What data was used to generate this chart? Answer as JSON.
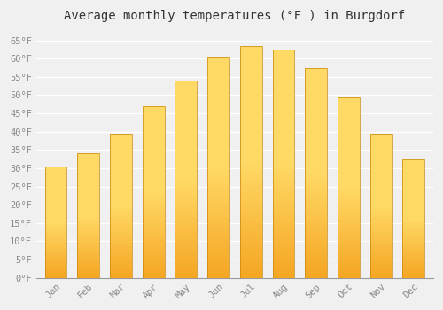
{
  "title": "Average monthly temperatures (°F ) in Burgdorf",
  "months": [
    "Jan",
    "Feb",
    "Mar",
    "Apr",
    "May",
    "Jun",
    "Jul",
    "Aug",
    "Sep",
    "Oct",
    "Nov",
    "Dec"
  ],
  "values": [
    30.5,
    34.0,
    39.5,
    47.0,
    54.0,
    60.5,
    63.5,
    62.5,
    57.5,
    49.5,
    39.5,
    32.5
  ],
  "bar_color_light": "#FFD966",
  "bar_color_dark": "#F5A623",
  "bar_edge_color": "#C8860A",
  "ylim": [
    0,
    68
  ],
  "yticks": [
    0,
    5,
    10,
    15,
    20,
    25,
    30,
    35,
    40,
    45,
    50,
    55,
    60,
    65
  ],
  "ytick_labels": [
    "0°F",
    "5°F",
    "10°F",
    "15°F",
    "20°F",
    "25°F",
    "30°F",
    "35°F",
    "40°F",
    "45°F",
    "50°F",
    "55°F",
    "60°F",
    "65°F"
  ],
  "background_color": "#f0f0f0",
  "grid_color": "#ffffff",
  "title_fontsize": 10,
  "tick_fontsize": 7.5,
  "font_family": "monospace"
}
